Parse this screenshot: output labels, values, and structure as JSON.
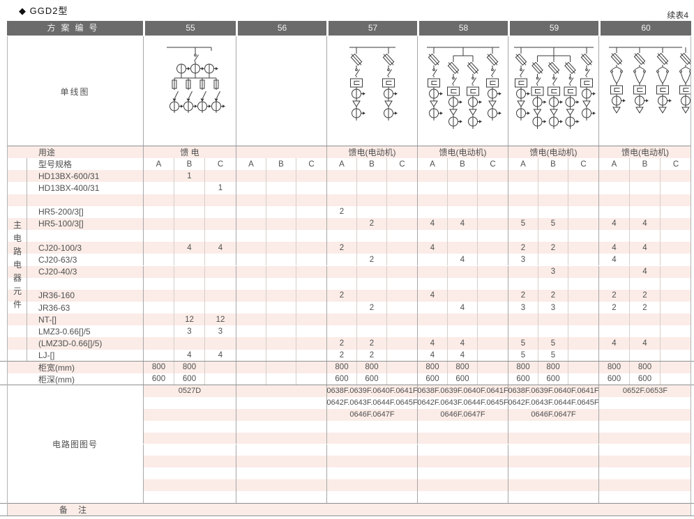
{
  "page": {
    "title": "◆ GGD2型",
    "continuation_note": "续表4"
  },
  "colors": {
    "header_bg": "#6b6b6b",
    "header_text": "#f2f2f2",
    "stripe_pink": "#fbece7",
    "row_white": "#ffffff",
    "grid_strong": "#a6a6a6",
    "grid_light": "#d4cec9",
    "rule_heavy": "#8f8f8f",
    "diagram_stroke": "#3a3a3a",
    "text": "#4f4f4f"
  },
  "table": {
    "plan_header": {
      "label": "方案编号",
      "schemes": [
        "55",
        "56",
        "57",
        "58",
        "59",
        "60"
      ]
    },
    "single_line_row_label": "单线图",
    "usage_row": {
      "label": "用途",
      "values": [
        "馈 电",
        "",
        "馈电(电动机)",
        "馈电(电动机)",
        "馈电(电动机)",
        "馈电(电动机)"
      ]
    },
    "phase_header_row": {
      "label": "型号规格",
      "phases": [
        "A",
        "B",
        "C"
      ]
    },
    "side_label": "主电路电器元件",
    "component_rows": [
      {
        "label": "HD13BX-600/31",
        "cells": [
          "",
          "1",
          "",
          "",
          "",
          "",
          "",
          "",
          "",
          "",
          "",
          "",
          "",
          "",
          "",
          "",
          "",
          ""
        ]
      },
      {
        "label": "HD13BX-400/31",
        "cells": [
          "",
          "",
          "1",
          "",
          "",
          "",
          "",
          "",
          "",
          "",
          "",
          "",
          "",
          "",
          "",
          "",
          "",
          ""
        ]
      },
      {
        "label": "",
        "cells": [
          "",
          "",
          "",
          "",
          "",
          "",
          "",
          "",
          "",
          "",
          "",
          "",
          "",
          "",
          "",
          "",
          "",
          ""
        ]
      },
      {
        "label": "HR5-200/3[]",
        "cells": [
          "",
          "",
          "",
          "",
          "",
          "",
          "2",
          "",
          "",
          "",
          "",
          "",
          "",
          "",
          "",
          "",
          "",
          ""
        ]
      },
      {
        "label": "HR5-100/3[]",
        "cells": [
          "",
          "",
          "",
          "",
          "",
          "",
          "",
          "2",
          "",
          "4",
          "4",
          "",
          "5",
          "5",
          "",
          "4",
          "4",
          ""
        ]
      },
      {
        "label": "",
        "cells": [
          "",
          "",
          "",
          "",
          "",
          "",
          "",
          "",
          "",
          "",
          "",
          "",
          "",
          "",
          "",
          "",
          "",
          ""
        ]
      },
      {
        "label": "CJ20-100/3",
        "cells": [
          "",
          "4",
          "4",
          "",
          "",
          "",
          "2",
          "",
          "",
          "4",
          "",
          "",
          "2",
          "2",
          "",
          "4",
          "4",
          ""
        ]
      },
      {
        "label": "CJ20-63/3",
        "cells": [
          "",
          "",
          "",
          "",
          "",
          "",
          "",
          "2",
          "",
          "",
          "4",
          "",
          "3",
          "",
          "",
          "4",
          "",
          ""
        ]
      },
      {
        "label": "CJ20-40/3",
        "cells": [
          "",
          "",
          "",
          "",
          "",
          "",
          "",
          "",
          "",
          "",
          "",
          "",
          "",
          "3",
          "",
          "",
          "4",
          ""
        ]
      },
      {
        "label": "",
        "cells": [
          "",
          "",
          "",
          "",
          "",
          "",
          "",
          "",
          "",
          "",
          "",
          "",
          "",
          "",
          "",
          "",
          "",
          ""
        ]
      },
      {
        "label": "JR36-160",
        "cells": [
          "",
          "",
          "",
          "",
          "",
          "",
          "2",
          "",
          "",
          "4",
          "",
          "",
          "2",
          "2",
          "",
          "2",
          "2",
          ""
        ]
      },
      {
        "label": "JR36-63",
        "cells": [
          "",
          "",
          "",
          "",
          "",
          "",
          "",
          "2",
          "",
          "",
          "4",
          "",
          "3",
          "3",
          "",
          "2",
          "2",
          ""
        ]
      },
      {
        "label": "NT-[]",
        "cells": [
          "",
          "12",
          "12",
          "",
          "",
          "",
          "",
          "",
          "",
          "",
          "",
          "",
          "",
          "",
          "",
          "",
          "",
          ""
        ]
      },
      {
        "label": "LMZ3-0.66[]/5",
        "cells": [
          "",
          "3",
          "3",
          "",
          "",
          "",
          "",
          "",
          "",
          "",
          "",
          "",
          "",
          "",
          "",
          "",
          "",
          ""
        ]
      },
      {
        "label": "(LMZ3D-0.66[]/5)",
        "cells": [
          "",
          "",
          "",
          "",
          "",
          "",
          "2",
          "2",
          "",
          "4",
          "4",
          "",
          "5",
          "5",
          "",
          "4",
          "4",
          ""
        ]
      },
      {
        "label": "LJ-[]",
        "cells": [
          "",
          "4",
          "4",
          "",
          "",
          "",
          "2",
          "2",
          "",
          "4",
          "4",
          "",
          "5",
          "5",
          "",
          "",
          "",
          ""
        ]
      },
      {
        "label": "柜宽(mm)",
        "cells": [
          "800",
          "800",
          "",
          "",
          "",
          "",
          "800",
          "800",
          "",
          "800",
          "800",
          "",
          "800",
          "800",
          "",
          "800",
          "800",
          ""
        ]
      },
      {
        "label": "柜深(mm)",
        "cells": [
          "600",
          "600",
          "",
          "",
          "",
          "",
          "600",
          "600",
          "",
          "600",
          "600",
          "",
          "600",
          "600",
          "",
          "600",
          "600",
          ""
        ]
      }
    ],
    "circuit_section": {
      "label": "电路图图号",
      "rows": [
        [
          "0527D",
          "",
          "0638F.0639F.0640F.0641F",
          "0638F.0639F.0640F.0641F",
          "0638F.0639F.0640F.0641F",
          "0652F.0653F"
        ],
        [
          "",
          "",
          "0642F.0643F.0644F.0645F",
          "0642F.0643F.0644F.0645F",
          "0642F.0643F.0644F.0645F",
          ""
        ],
        [
          "",
          "",
          "0646F.0647F",
          "0646F.0647F",
          "0646F.0647F",
          ""
        ],
        [
          "",
          "",
          "",
          "",
          "",
          ""
        ],
        [
          "",
          "",
          "",
          "",
          "",
          ""
        ],
        [
          "",
          "",
          "",
          "",
          "",
          ""
        ],
        [
          "",
          "",
          "",
          "",
          "",
          ""
        ],
        [
          "",
          "",
          "",
          "",
          "",
          ""
        ],
        [
          "",
          "",
          "",
          "",
          "",
          ""
        ],
        [
          "",
          "",
          "",
          "",
          "",
          ""
        ]
      ]
    },
    "remarks_row": {
      "label": "备 注"
    }
  },
  "diagrams": [
    {
      "scheme": "55",
      "kind": "feeder",
      "feeders": 4
    },
    {
      "scheme": "56",
      "kind": "empty",
      "feeders": 0
    },
    {
      "scheme": "57",
      "kind": "motor",
      "feeders": 2,
      "tied": []
    },
    {
      "scheme": "58",
      "kind": "motor",
      "feeders": 4,
      "tied": [
        1,
        2
      ]
    },
    {
      "scheme": "59",
      "kind": "motor",
      "feeders": 5,
      "tied": [
        1,
        2,
        3
      ]
    },
    {
      "scheme": "60",
      "kind": "motor-reversing",
      "feeders": 4
    }
  ]
}
